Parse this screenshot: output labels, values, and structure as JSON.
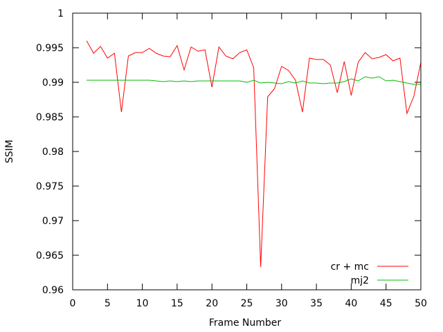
{
  "chart_data": {
    "type": "line",
    "title": "",
    "xlabel": "Frame Number",
    "ylabel": "SSIM",
    "xlim": [
      0,
      50
    ],
    "ylim": [
      0.96,
      1
    ],
    "xticks": [
      0,
      5,
      10,
      15,
      20,
      25,
      30,
      35,
      40,
      45,
      50
    ],
    "xtick_labels": [
      "0",
      "5",
      "10",
      "15",
      "20",
      "25",
      "30",
      "35",
      "40",
      "45",
      "50"
    ],
    "yticks": [
      0.96,
      0.965,
      0.97,
      0.975,
      0.98,
      0.985,
      0.99,
      0.995,
      1
    ],
    "ytick_labels": [
      "0.96",
      "0.965",
      "0.97",
      "0.975",
      "0.98",
      "0.985",
      "0.99",
      "0.995",
      "1"
    ],
    "grid": false,
    "legend_position": "bottom-right",
    "series": [
      {
        "name": "cr + mc",
        "color": "#ff0000",
        "x": [
          2,
          3,
          4,
          5,
          6,
          7,
          8,
          9,
          10,
          11,
          12,
          13,
          14,
          15,
          16,
          17,
          18,
          19,
          20,
          21,
          22,
          23,
          24,
          25,
          26,
          27,
          28,
          29,
          30,
          31,
          32,
          33,
          34,
          35,
          36,
          37,
          38,
          39,
          40,
          41,
          42,
          43,
          44,
          45,
          46,
          47,
          48,
          49,
          50
        ],
        "y": [
          0.996,
          0.9942,
          0.9952,
          0.9935,
          0.9942,
          0.9857,
          0.9938,
          0.9943,
          0.9943,
          0.9949,
          0.9942,
          0.9938,
          0.9937,
          0.9953,
          0.9918,
          0.9951,
          0.9945,
          0.9947,
          0.9893,
          0.9951,
          0.9938,
          0.9934,
          0.9943,
          0.9947,
          0.9921,
          0.9633,
          0.9879,
          0.9891,
          0.9923,
          0.9917,
          0.9903,
          0.9857,
          0.9935,
          0.9933,
          0.9933,
          0.9925,
          0.9885,
          0.993,
          0.9881,
          0.9929,
          0.9943,
          0.9934,
          0.9936,
          0.994,
          0.9931,
          0.9935,
          0.9855,
          0.988,
          0.9929
        ]
      },
      {
        "name": "mj2",
        "color": "#00bb00",
        "x": [
          2,
          3,
          4,
          5,
          6,
          7,
          8,
          9,
          10,
          11,
          12,
          13,
          14,
          15,
          16,
          17,
          18,
          19,
          20,
          21,
          22,
          23,
          24,
          25,
          26,
          27,
          28,
          29,
          30,
          31,
          32,
          33,
          34,
          35,
          36,
          37,
          38,
          39,
          40,
          41,
          42,
          43,
          44,
          45,
          46,
          47,
          48,
          49,
          50
        ],
        "y": [
          0.9903,
          0.9903,
          0.9903,
          0.9903,
          0.9903,
          0.9903,
          0.9903,
          0.9903,
          0.9903,
          0.9903,
          0.9902,
          0.9901,
          0.9902,
          0.9901,
          0.9902,
          0.9901,
          0.9902,
          0.9902,
          0.9902,
          0.9902,
          0.9902,
          0.9902,
          0.9902,
          0.99,
          0.9903,
          0.9899,
          0.99,
          0.9899,
          0.9898,
          0.9901,
          0.9899,
          0.9902,
          0.9899,
          0.9899,
          0.9898,
          0.9899,
          0.9899,
          0.9901,
          0.9905,
          0.9902,
          0.9908,
          0.9906,
          0.9908,
          0.9902,
          0.9903,
          0.9901,
          0.9899,
          0.9897,
          0.9897
        ]
      }
    ]
  }
}
